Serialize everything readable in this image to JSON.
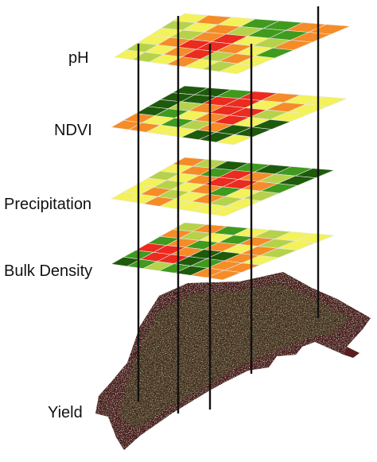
{
  "palette": {
    "dark_green": "#1e5a0c",
    "green": "#3f9a1e",
    "yellow_green": "#b6d24b",
    "yellow": "#f3f25a",
    "orange": "#f58c28",
    "red": "#ec2a1e",
    "yield_base": "#4a1e1e",
    "rod": "#111111"
  },
  "layers": [
    {
      "label": "pH",
      "grid": [
        [
          "yellow",
          "orange",
          "yellow",
          "green",
          "green",
          "orange",
          "orange"
        ],
        [
          "yellow_green",
          "yellow",
          "orange",
          "yellow_green",
          "green",
          "green",
          "orange"
        ],
        [
          "yellow",
          "yellow_green",
          "orange",
          "red",
          "yellow",
          "yellow_green",
          "orange"
        ],
        [
          "yellow",
          "orange",
          "red",
          "red",
          "orange",
          "yellow",
          "green"
        ],
        [
          "yellow_green",
          "yellow",
          "orange",
          "red",
          "yellow_green",
          "orange",
          "yellow"
        ],
        [
          "yellow",
          "yellow_green",
          "yellow",
          "orange",
          "yellow",
          "yellow_green",
          "yellow"
        ]
      ]
    },
    {
      "label": "NDVI",
      "grid": [
        [
          "dark_green",
          "dark_green",
          "green",
          "red",
          "orange",
          "yellow",
          "yellow"
        ],
        [
          "dark_green",
          "dark_green",
          "red",
          "red",
          "yellow",
          "orange",
          "yellow"
        ],
        [
          "dark_green",
          "yellow_green",
          "orange",
          "red",
          "red",
          "yellow_green",
          "yellow"
        ],
        [
          "dark_green",
          "green",
          "yellow",
          "orange",
          "red",
          "yellow",
          "dark_green"
        ],
        [
          "orange",
          "yellow",
          "green",
          "yellow_green",
          "orange",
          "dark_green",
          "dark_green"
        ],
        [
          "orange",
          "orange",
          "yellow",
          "yellow",
          "dark_green",
          "dark_green",
          "yellow"
        ]
      ]
    },
    {
      "label": "Precipitation",
      "grid": [
        [
          "orange",
          "yellow_green",
          "dark_green",
          "green",
          "dark_green",
          "green",
          "dark_green"
        ],
        [
          "yellow",
          "orange",
          "green",
          "red",
          "orange",
          "yellow_green",
          "dark_green"
        ],
        [
          "yellow_green",
          "yellow",
          "orange",
          "red",
          "red",
          "orange",
          "green"
        ],
        [
          "yellow",
          "yellow_green",
          "yellow",
          "orange",
          "green",
          "yellow",
          "yellow_green"
        ],
        [
          "yellow",
          "orange",
          "yellow_green",
          "yellow",
          "orange",
          "yellow_green",
          "yellow"
        ],
        [
          "yellow",
          "yellow",
          "orange",
          "yellow",
          "yellow",
          "yellow",
          "yellow"
        ]
      ]
    },
    {
      "label": "Bulk Density",
      "grid": [
        [
          "yellow_green",
          "orange",
          "green",
          "yellow",
          "yellow_green",
          "yellow",
          "yellow"
        ],
        [
          "orange",
          "yellow_green",
          "yellow",
          "green",
          "orange",
          "yellow_green",
          "yellow"
        ],
        [
          "green",
          "orange",
          "green",
          "orange",
          "yellow",
          "orange",
          "yellow_green"
        ],
        [
          "red",
          "red",
          "orange",
          "dark_green",
          "dark_green",
          "orange",
          "yellow"
        ],
        [
          "green",
          "red",
          "red",
          "dark_green",
          "green",
          "orange",
          "orange"
        ],
        [
          "dark_green",
          "green",
          "yellow_green",
          "green",
          "dark_green",
          "orange",
          "orange"
        ]
      ]
    },
    {
      "label": "Yield",
      "grid": []
    }
  ]
}
